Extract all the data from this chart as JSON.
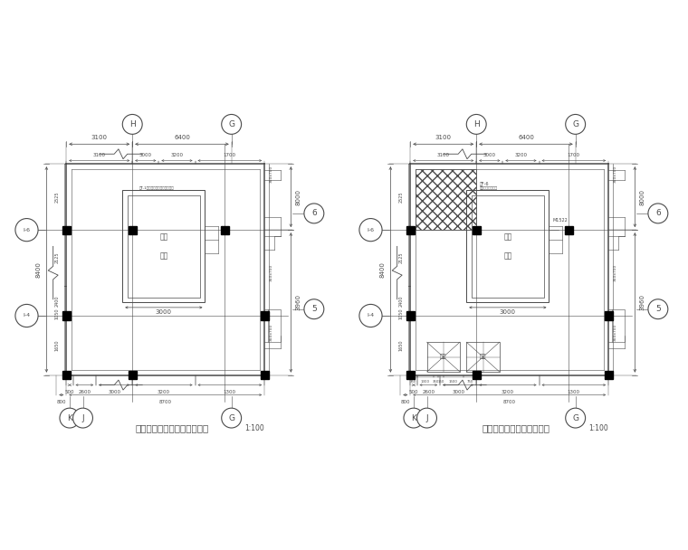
{
  "bg_color": "#ffffff",
  "lc": "#4a4a4a",
  "title_left": "新增钢结构电梯负一层平面图",
  "title_right": "新增钢结构电梯一层平面图",
  "scale": "1:100",
  "dim_fs": 5,
  "label_fs": 5.5,
  "axis_fs": 6.5
}
